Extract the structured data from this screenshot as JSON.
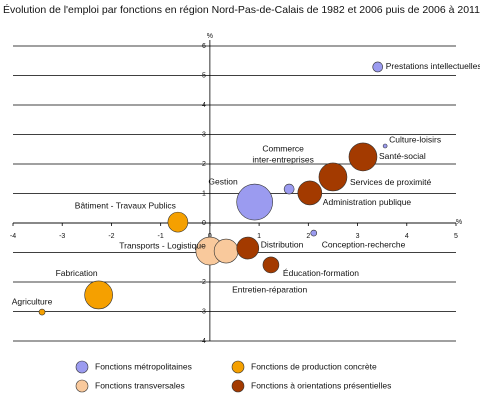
{
  "chart_data": {
    "type": "scatter",
    "title": "Évolution de l'emploi par fonctions en région Nord-Pas-de-Calais de 1982 et 2006 puis de 2006 à 2011",
    "x_label": "%",
    "y_label": "%",
    "xlim": [
      -4,
      5
    ],
    "ylim": [
      -4,
      6
    ],
    "xticks": [
      -4,
      -3,
      -2,
      -1,
      0,
      1,
      2,
      3,
      4,
      5
    ],
    "yticks": [
      -4,
      -3,
      -2,
      -1,
      0,
      1,
      2,
      3,
      4,
      5,
      6
    ],
    "grid": true,
    "series": [
      {
        "name": "Fonctions métropolitaines",
        "color": "#9b9bf0",
        "labels": [
          "Prestations intellectuelles",
          "Culture-loisirs",
          [
            "Commerce",
            "inter-entreprises"
          ],
          "Gestion",
          "Conception-recherche"
        ],
        "x": [
          3.41,
          3.56,
          1.61,
          0.91,
          2.11
        ],
        "values": [
          5.29,
          2.61,
          1.15,
          0.71,
          -0.34
        ],
        "sizes": [
          25,
          4,
          25,
          324,
          9
        ]
      },
      {
        "name": "Fonctions de production concrète",
        "color": "#f5a000",
        "labels": [
          "Bâtiment - Travaux Publics",
          "Fabrication",
          "Agriculture"
        ],
        "x": [
          -0.65,
          -2.26,
          -3.41
        ],
        "values": [
          0.03,
          -2.44,
          -3.02
        ],
        "sizes": [
          100,
          196,
          9
        ]
      },
      {
        "name": "Fonctions transversales",
        "color": "#f9c99c",
        "labels": [
          "Transports - Logistique",
          "Entretien-réparation"
        ],
        "x": [
          0,
          0.33
        ],
        "values": [
          -0.95,
          -0.95
        ],
        "sizes": [
          196,
          144
        ]
      },
      {
        "name": "Fonctions à orientations présentielles",
        "color": "#a33a00",
        "labels": [
          "Santé-social",
          "Services de proximité",
          "Administration publique",
          "Distribution",
          "Éducation-formation"
        ],
        "x": [
          3.11,
          2.5,
          2.03,
          0.77,
          1.24
        ],
        "values": [
          2.24,
          1.56,
          1.02,
          -0.85,
          -1.42
        ],
        "sizes": [
          196,
          196,
          144,
          121,
          64
        ]
      }
    ]
  }
}
